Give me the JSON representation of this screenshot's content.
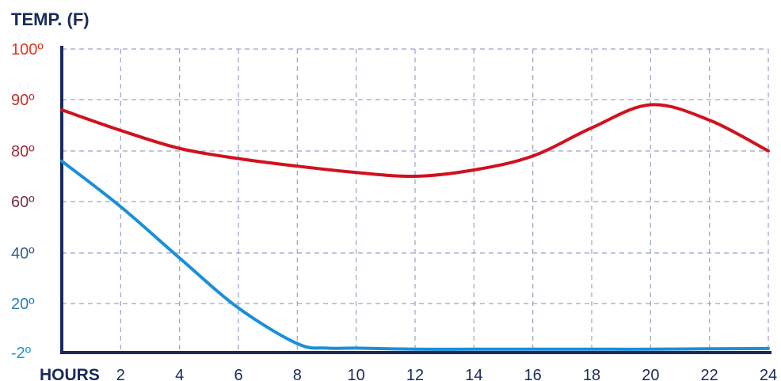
{
  "chart_data": {
    "type": "line",
    "ylabel": "TEMP. (F)",
    "xlabel": "HOURS",
    "x_ticks": [
      "2",
      "4",
      "6",
      "8",
      "10",
      "12",
      "14",
      "16",
      "18",
      "20",
      "22",
      "24"
    ],
    "y_ticks": [
      {
        "label": "100º",
        "value": 100,
        "color": "#e8351f"
      },
      {
        "label": "90º",
        "value": 90,
        "color": "#c73029"
      },
      {
        "label": "80º",
        "value": 80,
        "color": "#a02c3a"
      },
      {
        "label": "60º",
        "value": 60,
        "color": "#7a2f48"
      },
      {
        "label": "40º",
        "value": 40,
        "color": "#3a5c8c"
      },
      {
        "label": "20º",
        "value": 20,
        "color": "#2b7fb8"
      },
      {
        "label": "-2º",
        "value": -2,
        "color": "#1f95d8"
      }
    ],
    "grid": true,
    "series": [
      {
        "color": "#d0121e",
        "x": [
          0,
          2,
          4,
          6,
          8,
          10,
          12,
          14,
          16,
          18,
          20,
          22,
          24
        ],
        "y": [
          88,
          84,
          80.5,
          77,
          74,
          71.5,
          70,
          72.5,
          78,
          84.5,
          89,
          86,
          80
        ]
      },
      {
        "color": "#1a8fda",
        "x": [
          0,
          2,
          4,
          6,
          8,
          9,
          10,
          12,
          14,
          16,
          18,
          20,
          22,
          24
        ],
        "y": [
          76,
          58,
          38,
          18,
          2,
          0,
          0,
          -0.5,
          -0.5,
          -0.5,
          -0.5,
          -0.5,
          -0.3,
          -0.2
        ]
      }
    ]
  }
}
